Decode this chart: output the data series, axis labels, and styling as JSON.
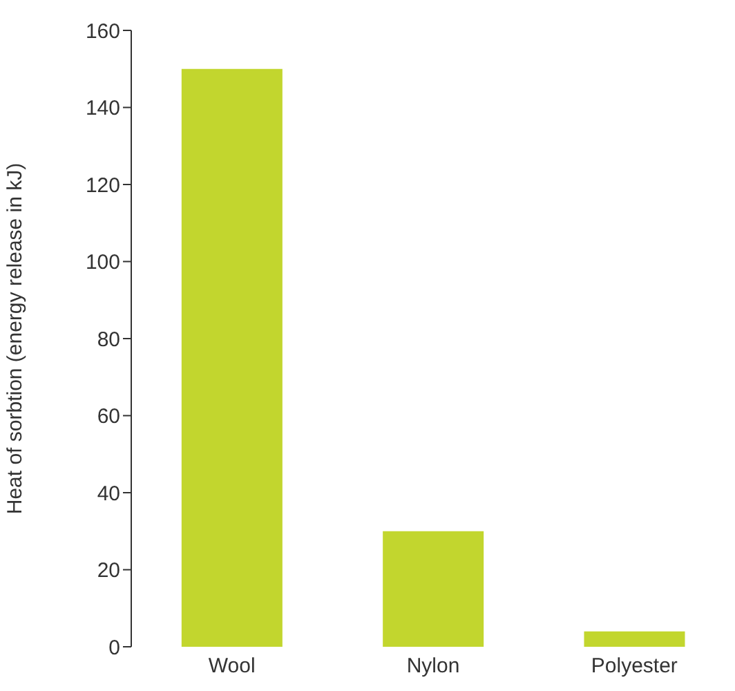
{
  "chart_data": {
    "type": "bar",
    "ylabel": "Heat of sorbtion (energy release in kJ)",
    "categories": [
      "Wool",
      "Nylon",
      "Polyester"
    ],
    "values": [
      150,
      30,
      4
    ],
    "color": "#c2d62e",
    "ylim": [
      0,
      160
    ],
    "yticks": [
      0,
      20,
      40,
      60,
      80,
      100,
      120,
      140,
      160
    ],
    "grid": false,
    "legend": false
  }
}
